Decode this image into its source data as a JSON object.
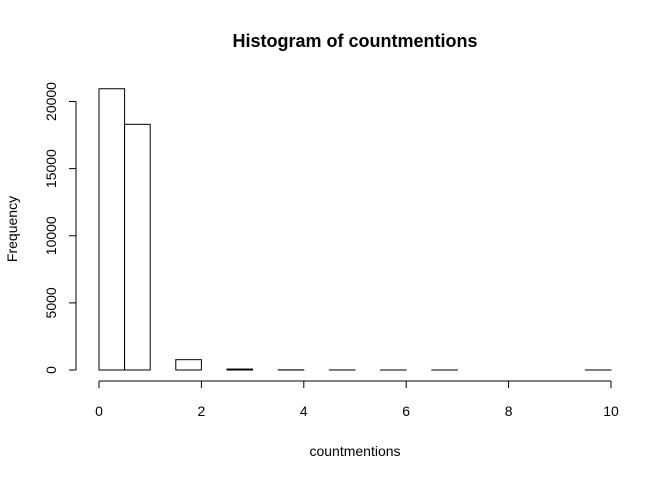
{
  "chart_data": {
    "type": "bar",
    "title": "Histogram of countmentions",
    "xlabel": "countmentions",
    "ylabel": "Frequency",
    "bin_width": 0.5,
    "bins": [
      {
        "start": 0.0,
        "end": 0.5,
        "count": 20950
      },
      {
        "start": 0.5,
        "end": 1.0,
        "count": 18300
      },
      {
        "start": 1.0,
        "end": 1.5,
        "count": 0
      },
      {
        "start": 1.5,
        "end": 2.0,
        "count": 770
      },
      {
        "start": 2.0,
        "end": 2.5,
        "count": 0
      },
      {
        "start": 2.5,
        "end": 3.0,
        "count": 70
      },
      {
        "start": 3.0,
        "end": 3.5,
        "count": 0
      },
      {
        "start": 3.5,
        "end": 4.0,
        "count": 10
      },
      {
        "start": 4.0,
        "end": 4.5,
        "count": 0
      },
      {
        "start": 4.5,
        "end": 5.0,
        "count": 3
      },
      {
        "start": 5.0,
        "end": 5.5,
        "count": 0
      },
      {
        "start": 5.5,
        "end": 6.0,
        "count": 1
      },
      {
        "start": 6.0,
        "end": 6.5,
        "count": 0
      },
      {
        "start": 6.5,
        "end": 7.0,
        "count": 1
      },
      {
        "start": 7.0,
        "end": 7.5,
        "count": 0
      },
      {
        "start": 7.5,
        "end": 8.0,
        "count": 0
      },
      {
        "start": 8.0,
        "end": 8.5,
        "count": 0
      },
      {
        "start": 8.5,
        "end": 9.0,
        "count": 0
      },
      {
        "start": 9.0,
        "end": 9.5,
        "count": 0
      },
      {
        "start": 9.5,
        "end": 10.0,
        "count": 1
      }
    ],
    "xlim": [
      0,
      10
    ],
    "ylim": [
      0,
      21000
    ],
    "x_ticks": [
      0,
      2,
      4,
      6,
      8,
      10
    ],
    "y_ticks": [
      0,
      5000,
      10000,
      15000,
      20000
    ],
    "x_tick_labels": [
      "0",
      "2",
      "4",
      "6",
      "8",
      "10"
    ],
    "y_tick_labels": [
      "0",
      "5000",
      "10000",
      "15000",
      "20000"
    ],
    "grid": false,
    "legend": "none"
  }
}
